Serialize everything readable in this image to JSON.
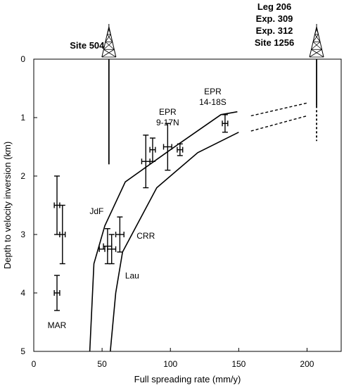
{
  "chart_data": {
    "type": "scatter",
    "xlabel": "Full spreading rate (mm/y)",
    "ylabel": "Depth to velocity inversion (km)",
    "xlim": [
      0,
      225
    ],
    "ylim": [
      5,
      0
    ],
    "x_ticks": [
      0,
      50,
      100,
      150,
      200
    ],
    "y_ticks": [
      0,
      1,
      2,
      3,
      4,
      5
    ],
    "grid": false,
    "legend": "none",
    "points": [
      {
        "x": 17,
        "y": 2.5,
        "xerr": 2,
        "ymin": 2.0,
        "ymax": 3.0
      },
      {
        "x": 21,
        "y": 3.0,
        "xerr": 2,
        "ymin": 2.5,
        "ymax": 3.5
      },
      {
        "x": 17,
        "y": 4.0,
        "xerr": 2,
        "ymin": 3.7,
        "ymax": 4.3
      },
      {
        "x": 50,
        "y": 3.25,
        "xerr": 2,
        "ymin": 3.25,
        "ymax": 3.25
      },
      {
        "x": 54,
        "y": 3.2,
        "xerr": 3,
        "ymin": 2.9,
        "ymax": 3.5
      },
      {
        "x": 57,
        "y": 3.25,
        "xerr": 3,
        "ymin": 3.0,
        "ymax": 3.5
      },
      {
        "x": 63,
        "y": 3.0,
        "xerr": 3,
        "ymin": 2.7,
        "ymax": 3.3
      },
      {
        "x": 82,
        "y": 1.75,
        "xerr": 3,
        "ymin": 1.3,
        "ymax": 2.2
      },
      {
        "x": 87,
        "y": 1.55,
        "xerr": 2,
        "ymin": 1.35,
        "ymax": 1.75
      },
      {
        "x": 98,
        "y": 1.5,
        "xerr": 3,
        "ymin": 1.1,
        "ymax": 1.9
      },
      {
        "x": 107,
        "y": 1.55,
        "xerr": 2,
        "ymin": 1.45,
        "ymax": 1.65
      },
      {
        "x": 140,
        "y": 1.1,
        "xerr": 2,
        "ymin": 0.95,
        "ymax": 1.25
      }
    ],
    "curves": [
      {
        "points": [
          [
            41,
            5.0
          ],
          [
            44,
            3.5
          ],
          [
            52,
            2.85
          ],
          [
            67,
            2.1
          ],
          [
            100,
            1.55
          ],
          [
            137,
            0.95
          ],
          [
            149,
            0.9
          ]
        ]
      },
      {
        "points": [
          [
            56,
            5.0
          ],
          [
            60,
            4.0
          ],
          [
            65,
            3.3
          ],
          [
            90,
            2.2
          ],
          [
            120,
            1.6
          ],
          [
            150,
            1.25
          ]
        ]
      }
    ],
    "dashed_extensions": [
      {
        "points": [
          [
            159,
            0.97
          ],
          [
            200,
            0.75
          ]
        ]
      },
      {
        "points": [
          [
            159,
            1.23
          ],
          [
            200,
            0.97
          ]
        ]
      }
    ],
    "site_markers": [
      {
        "label": "Site 504",
        "x": 55,
        "y_top": 0.0,
        "y_bottom": 1.8,
        "dashed_from": null
      },
      {
        "label": "Leg 206\nExp. 309\nExp. 312\nSite 1256",
        "x": 207,
        "y_top": 0.0,
        "y_bottom": 1.4,
        "dashed_from": 0.8
      }
    ],
    "annotations": [
      {
        "text": "EPR\n9-17N",
        "x": 98,
        "y": 0.95
      },
      {
        "text": "EPR\n14-18S",
        "x": 131,
        "y": 0.6
      },
      {
        "text": "JdF",
        "x": 46,
        "y": 2.65
      },
      {
        "text": "CRR",
        "x": 82,
        "y": 3.07
      },
      {
        "text": "Lau",
        "x": 72,
        "y": 3.75
      },
      {
        "text": "MAR",
        "x": 17,
        "y": 4.6
      }
    ]
  }
}
